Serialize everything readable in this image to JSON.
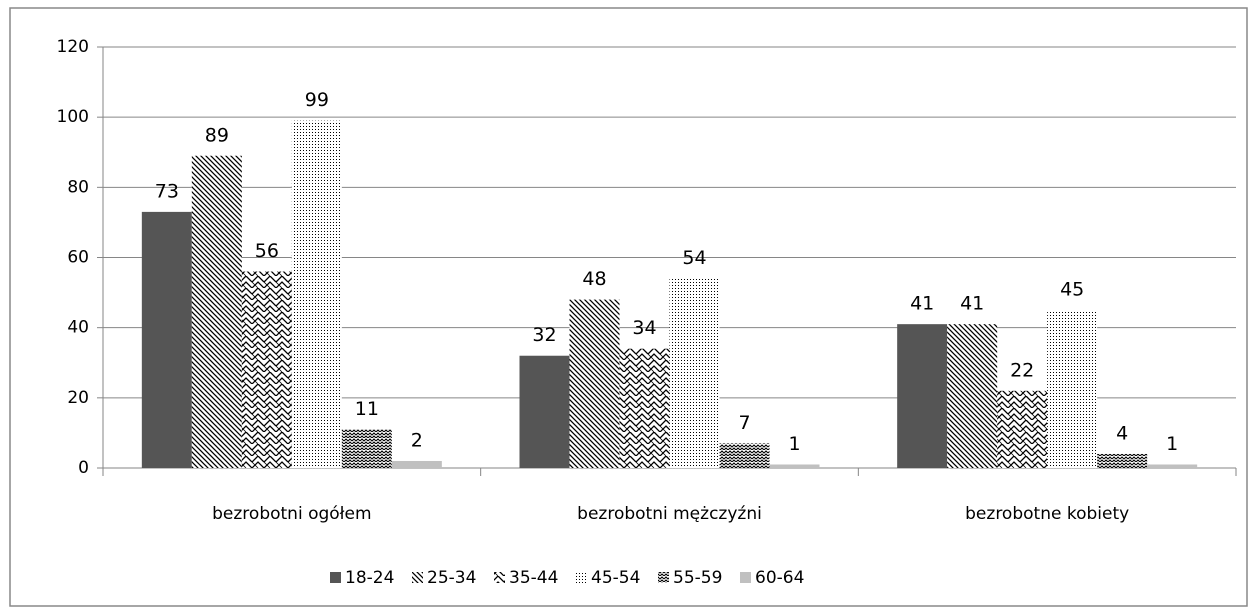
{
  "chart_data": {
    "type": "bar",
    "categories": [
      "bezrobotni ogółem",
      "bezrobotni mężczyźni",
      "bezrobotne kobiety"
    ],
    "series": [
      {
        "name": "18-24",
        "color": "#555555",
        "values": [
          73,
          32,
          41
        ]
      },
      {
        "name": "25-34",
        "color": "#000000",
        "values": [
          89,
          48,
          41
        ]
      },
      {
        "name": "35-44",
        "color": "#000000",
        "values": [
          56,
          34,
          22
        ]
      },
      {
        "name": "45-54",
        "color": "#000000",
        "values": [
          99,
          54,
          45
        ]
      },
      {
        "name": "55-59",
        "color": "#000000",
        "values": [
          11,
          7,
          4
        ]
      },
      {
        "name": "60-64",
        "color": "#c0c0c0",
        "values": [
          2,
          1,
          1
        ]
      }
    ],
    "ylim": [
      0,
      120
    ],
    "yticks": [
      0,
      20,
      40,
      60,
      80,
      100,
      120
    ],
    "grid": true,
    "legend": "bottom"
  }
}
